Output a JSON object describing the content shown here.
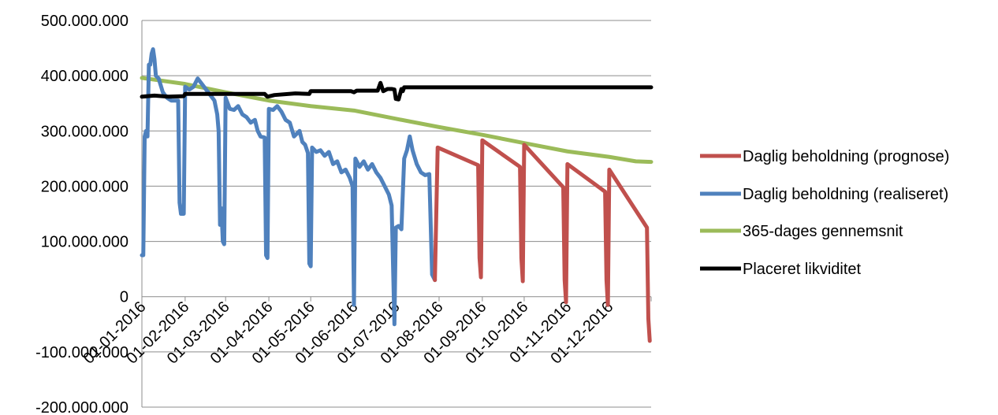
{
  "chart_data": {
    "type": "line",
    "ylim": [
      -200000000,
      500000000
    ],
    "ytick_step": 100000000,
    "ytick_labels": [
      "-200.000.000",
      "-100.000.000",
      "0",
      "100.000.000",
      "200.000.000",
      "300.000.000",
      "400.000.000",
      "500.000.000"
    ],
    "xlim": [
      "2016-01-01",
      "2016-12-31"
    ],
    "xtick_labels": [
      "01-01-2016",
      "01-02-2016",
      "01-03-2016",
      "01-04-2016",
      "01-05-2016",
      "01-06-2016",
      "01-07-2016",
      "01-08-2016",
      "01-09-2016",
      "01-10-2016",
      "01-11-2016",
      "01-12-2016"
    ],
    "xtick_dates": [
      "2016-01-01",
      "2016-02-01",
      "2016-03-01",
      "2016-04-01",
      "2016-05-01",
      "2016-06-01",
      "2016-07-01",
      "2016-08-01",
      "2016-09-01",
      "2016-10-01",
      "2016-11-01",
      "2016-12-01"
    ],
    "legend_position": "right",
    "grid": true,
    "series": [
      {
        "name": "Daglig beholdning (prognose)",
        "color": "#c0504d",
        "points": [
          [
            "2016-07-29",
            30000000
          ],
          [
            "2016-07-31",
            270000000
          ],
          [
            "2016-08-29",
            238000000
          ],
          [
            "2016-08-30",
            70000000
          ],
          [
            "2016-08-31",
            35000000
          ],
          [
            "2016-09-01",
            283000000
          ],
          [
            "2016-09-28",
            235000000
          ],
          [
            "2016-09-29",
            70000000
          ],
          [
            "2016-09-30",
            28000000
          ],
          [
            "2016-10-01",
            275000000
          ],
          [
            "2016-10-29",
            198000000
          ],
          [
            "2016-10-30",
            30000000
          ],
          [
            "2016-10-31",
            -10000000
          ],
          [
            "2016-11-01",
            240000000
          ],
          [
            "2016-11-28",
            190000000
          ],
          [
            "2016-11-29",
            30000000
          ],
          [
            "2016-11-30",
            -15000000
          ],
          [
            "2016-12-01",
            230000000
          ],
          [
            "2016-12-28",
            125000000
          ],
          [
            "2016-12-29",
            -40000000
          ],
          [
            "2016-12-30",
            -80000000
          ]
        ]
      },
      {
        "name": "Daglig beholdning (realiseret)",
        "color": "#4f81bd",
        "points": [
          [
            "2016-01-01",
            75000000
          ],
          [
            "2016-01-02",
            75000000
          ],
          [
            "2016-01-03",
            290000000
          ],
          [
            "2016-01-04",
            300000000
          ],
          [
            "2016-01-05",
            290000000
          ],
          [
            "2016-01-06",
            420000000
          ],
          [
            "2016-01-07",
            420000000
          ],
          [
            "2016-01-08",
            440000000
          ],
          [
            "2016-01-09",
            448000000
          ],
          [
            "2016-01-10",
            430000000
          ],
          [
            "2016-01-11",
            400000000
          ],
          [
            "2016-01-13",
            395000000
          ],
          [
            "2016-01-16",
            370000000
          ],
          [
            "2016-01-19",
            360000000
          ],
          [
            "2016-01-22",
            355000000
          ],
          [
            "2016-01-27",
            355000000
          ],
          [
            "2016-01-28",
            170000000
          ],
          [
            "2016-01-29",
            150000000
          ],
          [
            "2016-01-31",
            150000000
          ],
          [
            "2016-02-01",
            380000000
          ],
          [
            "2016-02-04",
            375000000
          ],
          [
            "2016-02-07",
            380000000
          ],
          [
            "2016-02-10",
            395000000
          ],
          [
            "2016-02-13",
            385000000
          ],
          [
            "2016-02-16",
            375000000
          ],
          [
            "2016-02-19",
            365000000
          ],
          [
            "2016-02-22",
            355000000
          ],
          [
            "2016-02-24",
            330000000
          ],
          [
            "2016-02-25",
            300000000
          ],
          [
            "2016-02-26",
            130000000
          ],
          [
            "2016-02-27",
            160000000
          ],
          [
            "2016-02-28",
            100000000
          ],
          [
            "2016-02-29",
            95000000
          ],
          [
            "2016-03-01",
            360000000
          ],
          [
            "2016-03-04",
            340000000
          ],
          [
            "2016-03-07",
            338000000
          ],
          [
            "2016-03-10",
            345000000
          ],
          [
            "2016-03-13",
            330000000
          ],
          [
            "2016-03-16",
            325000000
          ],
          [
            "2016-03-19",
            315000000
          ],
          [
            "2016-03-22",
            320000000
          ],
          [
            "2016-03-24",
            300000000
          ],
          [
            "2016-03-26",
            290000000
          ],
          [
            "2016-03-29",
            288000000
          ],
          [
            "2016-03-30",
            75000000
          ],
          [
            "2016-03-31",
            70000000
          ],
          [
            "2016-04-01",
            340000000
          ],
          [
            "2016-04-04",
            338000000
          ],
          [
            "2016-04-07",
            345000000
          ],
          [
            "2016-04-10",
            335000000
          ],
          [
            "2016-04-13",
            320000000
          ],
          [
            "2016-04-16",
            315000000
          ],
          [
            "2016-04-19",
            290000000
          ],
          [
            "2016-04-21",
            295000000
          ],
          [
            "2016-04-23",
            300000000
          ],
          [
            "2016-04-25",
            280000000
          ],
          [
            "2016-04-27",
            275000000
          ],
          [
            "2016-04-29",
            260000000
          ],
          [
            "2016-04-30",
            60000000
          ],
          [
            "2016-05-01",
            55000000
          ],
          [
            "2016-05-02",
            270000000
          ],
          [
            "2016-05-05",
            262000000
          ],
          [
            "2016-05-08",
            265000000
          ],
          [
            "2016-05-11",
            255000000
          ],
          [
            "2016-05-14",
            262000000
          ],
          [
            "2016-05-17",
            240000000
          ],
          [
            "2016-05-20",
            245000000
          ],
          [
            "2016-05-23",
            225000000
          ],
          [
            "2016-05-26",
            230000000
          ],
          [
            "2016-05-29",
            215000000
          ],
          [
            "2016-05-31",
            200000000
          ],
          [
            "2016-06-01",
            -15000000
          ],
          [
            "2016-06-02",
            250000000
          ],
          [
            "2016-06-05",
            235000000
          ],
          [
            "2016-06-08",
            245000000
          ],
          [
            "2016-06-11",
            230000000
          ],
          [
            "2016-06-14",
            240000000
          ],
          [
            "2016-06-17",
            225000000
          ],
          [
            "2016-06-20",
            215000000
          ],
          [
            "2016-06-23",
            200000000
          ],
          [
            "2016-06-26",
            185000000
          ],
          [
            "2016-06-28",
            165000000
          ],
          [
            "2016-06-30",
            -50000000
          ],
          [
            "2016-07-01",
            125000000
          ],
          [
            "2016-07-03",
            128000000
          ],
          [
            "2016-07-05",
            122000000
          ],
          [
            "2016-07-07",
            250000000
          ],
          [
            "2016-07-09",
            265000000
          ],
          [
            "2016-07-11",
            290000000
          ],
          [
            "2016-07-13",
            265000000
          ],
          [
            "2016-07-16",
            240000000
          ],
          [
            "2016-07-19",
            225000000
          ],
          [
            "2016-07-22",
            220000000
          ],
          [
            "2016-07-25",
            222000000
          ],
          [
            "2016-07-27",
            40000000
          ],
          [
            "2016-07-29",
            30000000
          ]
        ]
      },
      {
        "name": "365-dages gennemsnit",
        "color": "#9bbb59",
        "points": [
          [
            "2016-01-01",
            396000000
          ],
          [
            "2016-02-01",
            385000000
          ],
          [
            "2016-03-01",
            370000000
          ],
          [
            "2016-04-01",
            355000000
          ],
          [
            "2016-05-01",
            345000000
          ],
          [
            "2016-06-01",
            337000000
          ],
          [
            "2016-07-01",
            322000000
          ],
          [
            "2016-08-01",
            307000000
          ],
          [
            "2016-09-01",
            293000000
          ],
          [
            "2016-10-01",
            278000000
          ],
          [
            "2016-11-01",
            263000000
          ],
          [
            "2016-12-01",
            253000000
          ],
          [
            "2016-12-20",
            245000000
          ],
          [
            "2016-12-31",
            244000000
          ]
        ]
      },
      {
        "name": "Placeret likviditet",
        "color": "#000000",
        "points": [
          [
            "2016-01-01",
            362000000
          ],
          [
            "2016-01-10",
            364000000
          ],
          [
            "2016-01-20",
            362000000
          ],
          [
            "2016-01-31",
            363000000
          ],
          [
            "2016-02-01",
            367000000
          ],
          [
            "2016-03-29",
            367000000
          ],
          [
            "2016-03-31",
            362000000
          ],
          [
            "2016-04-05",
            365000000
          ],
          [
            "2016-04-20",
            368000000
          ],
          [
            "2016-04-30",
            367000000
          ],
          [
            "2016-05-01",
            372000000
          ],
          [
            "2016-05-30",
            372000000
          ],
          [
            "2016-06-01",
            370000000
          ],
          [
            "2016-06-03",
            373000000
          ],
          [
            "2016-06-18",
            373000000
          ],
          [
            "2016-06-20",
            387000000
          ],
          [
            "2016-06-22",
            372000000
          ],
          [
            "2016-06-25",
            376000000
          ],
          [
            "2016-06-28",
            376000000
          ],
          [
            "2016-06-30",
            375000000
          ],
          [
            "2016-07-01",
            358000000
          ],
          [
            "2016-07-03",
            357000000
          ],
          [
            "2016-07-05",
            376000000
          ],
          [
            "2016-07-06",
            372000000
          ],
          [
            "2016-07-07",
            379000000
          ],
          [
            "2016-12-31",
            379000000
          ]
        ]
      }
    ]
  }
}
